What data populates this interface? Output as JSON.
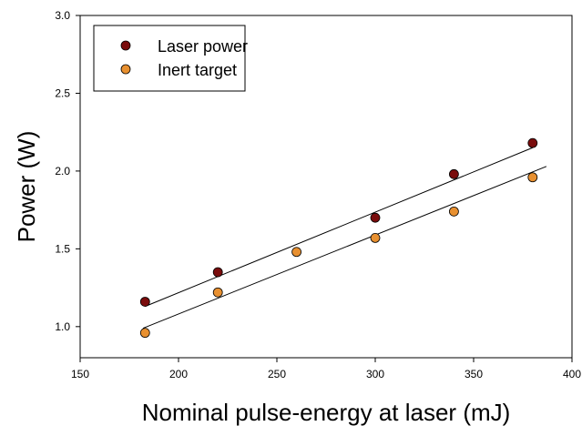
{
  "chart_data": {
    "type": "scatter",
    "title": "",
    "xlabel": "Nominal pulse-energy at laser (mJ)",
    "ylabel": "Power (W)",
    "xlim": [
      150,
      400
    ],
    "ylim": [
      0.8,
      3.0
    ],
    "xticks": [
      "150",
      "200",
      "250",
      "300",
      "350",
      "400"
    ],
    "yticks": [
      "1.0",
      "1.5",
      "2.0",
      "2.5",
      "3.0"
    ],
    "xtick_values": [
      150,
      200,
      250,
      300,
      350,
      400
    ],
    "ytick_values": [
      1.0,
      1.5,
      2.0,
      2.5,
      3.0
    ],
    "grid": false,
    "legend_position": "top-left",
    "series": [
      {
        "name": "Laser power",
        "color": "#7a0c0c",
        "x": [
          183,
          220,
          300,
          340,
          380
        ],
        "y": [
          1.16,
          1.35,
          1.7,
          1.98,
          2.18
        ],
        "fit": {
          "x": [
            183,
            380
          ],
          "y": [
            1.13,
            2.15
          ]
        }
      },
      {
        "name": "Inert target",
        "color": "#e89030",
        "x": [
          183,
          220,
          260,
          300,
          340,
          380
        ],
        "y": [
          0.96,
          1.22,
          1.48,
          1.57,
          1.74,
          1.96
        ],
        "fit": {
          "x": [
            182,
            387
          ],
          "y": [
            0.99,
            2.03
          ]
        }
      }
    ]
  }
}
